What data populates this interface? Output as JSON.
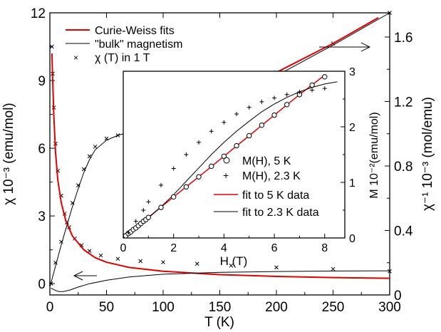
{
  "chart_data": [
    {
      "type": "scatter",
      "xlabel": "T (K)",
      "ylabel_left": "χ 10⁻³ (emu/mol)",
      "ylabel_right": "χ⁻¹ 10⁻³ (mol/emu)",
      "xlim": [
        0,
        300
      ],
      "ylim_left": [
        -0.5,
        12
      ],
      "ylim_right": [
        0,
        1.75
      ],
      "x_ticks": [
        "0",
        "50",
        "100",
        "150",
        "200",
        "250",
        "300"
      ],
      "y_ticks_left": [
        "0",
        "3",
        "6",
        "9",
        "12"
      ],
      "y_ticks_right": [
        "0",
        "0.4",
        "0.8",
        "1.2",
        "1.6"
      ],
      "legend_position": "top-left",
      "legend": {
        "cw": "Curie-Weiss fits",
        "bulk": "\"bulk\" magnetism",
        "chi": "χ (T) in 1 T"
      },
      "series": [
        {
          "axis": "left",
          "marker": "x",
          "x": [
            1.8,
            2.5,
            3.5,
            5,
            7,
            10,
            13,
            17,
            22,
            28,
            35,
            45,
            60,
            80,
            100,
            130,
            160,
            200,
            250,
            300
          ],
          "y": [
            10.5,
            9.3,
            7.8,
            6.2,
            5.0,
            3.9,
            3.1,
            2.5,
            2.0,
            1.7,
            1.45,
            1.25,
            1.1,
            1.0,
            0.95,
            0.88,
            0.8,
            0.72,
            0.65,
            0.55
          ]
        },
        {
          "axis": "right",
          "marker": "x",
          "x": [
            1,
            5,
            10,
            15,
            20,
            25,
            30,
            35,
            40,
            50,
            60,
            70,
            80,
            90,
            100,
            120,
            150,
            200,
            250,
            300
          ],
          "y": [
            0.07,
            0.2,
            0.33,
            0.45,
            0.57,
            0.68,
            0.78,
            0.86,
            0.92,
            0.97,
            0.99,
            1.01,
            1.03,
            1.05,
            1.07,
            1.13,
            1.22,
            1.38,
            1.56,
            1.78
          ]
        },
        {
          "axis": "left",
          "line": "red",
          "x": [
            1.8,
            2.5,
            3.5,
            5,
            7,
            10,
            14,
            20,
            30,
            40,
            50,
            70,
            100,
            150,
            200,
            250,
            300
          ],
          "y": [
            10.2,
            9.0,
            7.4,
            5.8,
            4.6,
            3.6,
            2.8,
            2.1,
            1.5,
            1.15,
            0.95,
            0.72,
            0.55,
            0.4,
            0.32,
            0.27,
            0.24
          ]
        },
        {
          "axis": "right",
          "line": "red",
          "x": [
            150,
            200,
            250,
            290
          ],
          "y": [
            1.22,
            1.38,
            1.56,
            1.72
          ]
        },
        {
          "axis": "left",
          "line": "black",
          "x": [
            1,
            3,
            5,
            8,
            12,
            18,
            25,
            35,
            50,
            70,
            100,
            150,
            200,
            250,
            300
          ],
          "y": [
            -0.2,
            -0.25,
            -0.3,
            -0.35,
            -0.35,
            -0.28,
            -0.15,
            0.0,
            0.15,
            0.3,
            0.42,
            0.5,
            0.54,
            0.56,
            0.57
          ]
        },
        {
          "axis": "right",
          "line": "black",
          "x": [
            0,
            5,
            10,
            15,
            20,
            25,
            30,
            35,
            40,
            50,
            60,
            70,
            80,
            100,
            120,
            140,
            160,
            180,
            200,
            250,
            300
          ],
          "y": [
            0.05,
            0.18,
            0.31,
            0.43,
            0.55,
            0.66,
            0.76,
            0.84,
            0.9,
            0.96,
            0.99,
            1.01,
            1.03,
            1.07,
            1.12,
            1.17,
            1.23,
            1.29,
            1.36,
            1.55,
            1.76
          ]
        }
      ]
    },
    {
      "type": "scatter",
      "xlabel": "H (T)",
      "ylabel": "M 10⁻²(emu/mol)",
      "xlim": [
        0,
        8.8
      ],
      "ylim": [
        0,
        3
      ],
      "x_ticks": [
        "0",
        "2",
        "4",
        "6",
        "8"
      ],
      "y_ticks": [
        "0",
        "1",
        "2",
        "3"
      ],
      "legend_position": "center-right",
      "legend": {
        "m5": "M(H), 5 K",
        "m23": "M(H), 2.3 K",
        "fit5": "fit to 5 K data",
        "fit23": "fit to 2.3 K data"
      },
      "series": [
        {
          "marker": "circle",
          "x": [
            0.1,
            0.2,
            0.3,
            0.4,
            0.5,
            0.6,
            0.7,
            0.8,
            0.9,
            1.0,
            1.5,
            2.0,
            2.5,
            3.0,
            3.5,
            4.0,
            4.5,
            5.0,
            5.5,
            6.0,
            6.5,
            7.0,
            7.5,
            8.0
          ],
          "y": [
            0.04,
            0.08,
            0.11,
            0.15,
            0.18,
            0.22,
            0.26,
            0.3,
            0.33,
            0.37,
            0.55,
            0.74,
            0.92,
            1.1,
            1.29,
            1.47,
            1.66,
            1.84,
            2.03,
            2.21,
            2.4,
            2.58,
            2.75,
            2.9
          ]
        },
        {
          "marker": "plus",
          "x": [
            0.2,
            0.5,
            0.8,
            1.0,
            1.5,
            2.0,
            2.5,
            3.0,
            3.5,
            4.0,
            4.5,
            5.0,
            5.5,
            6.0,
            6.5,
            7.0,
            7.5,
            8.0
          ],
          "y": [
            0.1,
            0.3,
            0.5,
            0.65,
            0.95,
            1.25,
            1.5,
            1.72,
            1.92,
            2.08,
            2.23,
            2.35,
            2.45,
            2.52,
            2.58,
            2.63,
            2.66,
            2.69
          ]
        },
        {
          "line": "red",
          "x": [
            0,
            1,
            2,
            3,
            4,
            5,
            6,
            7,
            8
          ],
          "y": [
            0,
            0.37,
            0.74,
            1.1,
            1.47,
            1.84,
            2.21,
            2.58,
            2.93
          ]
        },
        {
          "line": "black",
          "x": [
            0,
            0.5,
            1,
            1.5,
            2,
            2.5,
            3,
            3.5,
            4,
            4.5,
            5,
            5.5,
            6,
            6.5,
            7,
            7.5,
            8,
            8.5
          ],
          "y": [
            0,
            0.18,
            0.36,
            0.56,
            0.78,
            1.02,
            1.26,
            1.5,
            1.72,
            1.92,
            2.1,
            2.27,
            2.41,
            2.53,
            2.63,
            2.71,
            2.77,
            2.81
          ]
        }
      ]
    }
  ]
}
